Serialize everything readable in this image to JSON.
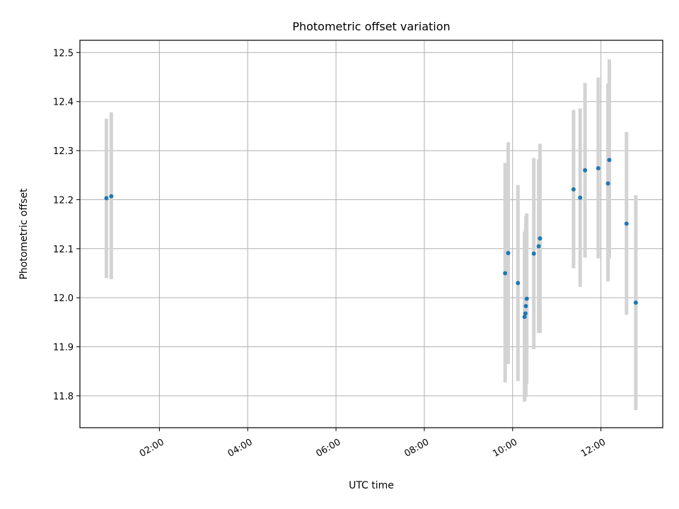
{
  "chart_data": {
    "type": "scatter",
    "title": "Photometric offset variation",
    "xlabel": "UTC time",
    "ylabel": "Photometric offset",
    "x_unit": "hours UTC",
    "xlim": [
      0.2,
      13.4
    ],
    "ylim": [
      11.735,
      12.525
    ],
    "x_ticks": [
      {
        "value": 2,
        "label": "02:00"
      },
      {
        "value": 4,
        "label": "04:00"
      },
      {
        "value": 6,
        "label": "06:00"
      },
      {
        "value": 8,
        "label": "08:00"
      },
      {
        "value": 10,
        "label": "10:00"
      },
      {
        "value": 12,
        "label": "12:00"
      }
    ],
    "y_ticks": [
      {
        "value": 11.8,
        "label": "11.8"
      },
      {
        "value": 11.9,
        "label": "11.9"
      },
      {
        "value": 12.0,
        "label": "12.0"
      },
      {
        "value": 12.1,
        "label": "12.1"
      },
      {
        "value": 12.2,
        "label": "12.2"
      },
      {
        "value": 12.3,
        "label": "12.3"
      },
      {
        "value": 12.4,
        "label": "12.4"
      },
      {
        "value": 12.5,
        "label": "12.5"
      }
    ],
    "grid": true,
    "marker_color": "#1f77b4",
    "errorbar_color": "#d3d3d3",
    "points": [
      {
        "x": 0.8,
        "y": 12.203,
        "low": 12.04,
        "high": 12.365
      },
      {
        "x": 0.91,
        "y": 12.207,
        "low": 12.038,
        "high": 12.378
      },
      {
        "x": 9.83,
        "y": 12.05,
        "low": 11.827,
        "high": 12.275
      },
      {
        "x": 9.9,
        "y": 12.091,
        "low": 11.865,
        "high": 12.317
      },
      {
        "x": 10.12,
        "y": 12.03,
        "low": 11.83,
        "high": 12.23
      },
      {
        "x": 10.27,
        "y": 11.961,
        "low": 11.788,
        "high": 12.134
      },
      {
        "x": 10.29,
        "y": 11.968,
        "low": 11.796,
        "high": 12.14
      },
      {
        "x": 10.3,
        "y": 11.983,
        "low": 11.8,
        "high": 12.166
      },
      {
        "x": 10.32,
        "y": 11.998,
        "low": 11.825,
        "high": 12.172
      },
      {
        "x": 10.48,
        "y": 12.09,
        "low": 11.895,
        "high": 12.285
      },
      {
        "x": 10.59,
        "y": 12.105,
        "low": 11.928,
        "high": 12.282
      },
      {
        "x": 10.62,
        "y": 12.121,
        "low": 11.928,
        "high": 12.314
      },
      {
        "x": 11.38,
        "y": 12.221,
        "low": 12.06,
        "high": 12.383
      },
      {
        "x": 11.53,
        "y": 12.204,
        "low": 12.022,
        "high": 12.386
      },
      {
        "x": 11.64,
        "y": 12.26,
        "low": 12.082,
        "high": 12.438
      },
      {
        "x": 11.94,
        "y": 12.264,
        "low": 12.08,
        "high": 12.449
      },
      {
        "x": 12.16,
        "y": 12.233,
        "low": 12.033,
        "high": 12.437
      },
      {
        "x": 12.19,
        "y": 12.281,
        "low": 12.08,
        "high": 12.486
      },
      {
        "x": 12.58,
        "y": 12.151,
        "low": 11.965,
        "high": 12.338
      },
      {
        "x": 12.79,
        "y": 11.99,
        "low": 11.771,
        "high": 12.209
      }
    ]
  }
}
